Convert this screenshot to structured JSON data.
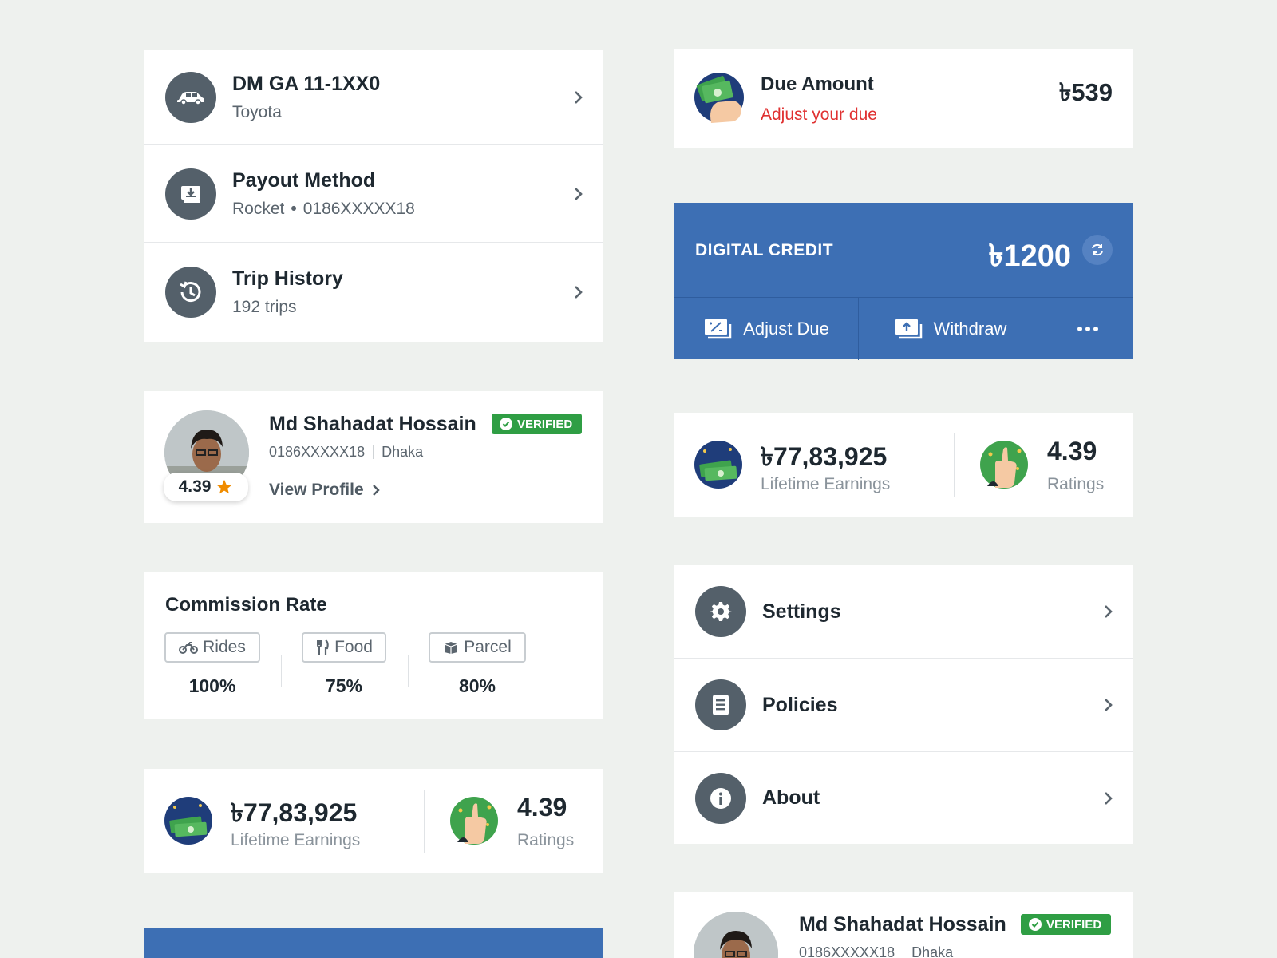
{
  "vehicle": {
    "title": "DM GA 11-1XX0",
    "subtitle": "Toyota"
  },
  "payout": {
    "title": "Payout Method",
    "provider": "Rocket",
    "number": "0186XXXXX18"
  },
  "trips": {
    "title": "Trip History",
    "subtitle": "192 trips"
  },
  "profile": {
    "name": "Md Shahadat Hossain",
    "phone": "0186XXXXX18",
    "city": "Dhaka",
    "badge": "VERIFIED",
    "rating": "4.39",
    "view_profile": "View Profile"
  },
  "commission": {
    "title": "Commission Rate",
    "items": [
      {
        "label": "Rides",
        "value": "100%",
        "icon": "motorbike-icon"
      },
      {
        "label": "Food",
        "value": "75%",
        "icon": "fork-knife-icon"
      },
      {
        "label": "Parcel",
        "value": "80%",
        "icon": "parcel-icon"
      }
    ]
  },
  "stats": {
    "earnings_value": "৳77,83,925",
    "earnings_label": "Lifetime Earnings",
    "ratings_value": "4.39",
    "ratings_label": "Ratings"
  },
  "due": {
    "title": "Due Amount",
    "subtitle": "Adjust your due",
    "amount": "৳539"
  },
  "digital_credit": {
    "label": "DIGITAL CREDIT",
    "amount": "৳1200",
    "adjust_label": "Adjust Due",
    "withdraw_label": "Withdraw"
  },
  "menu": [
    {
      "label": "Settings",
      "icon": "gear-icon"
    },
    {
      "label": "Policies",
      "icon": "document-icon"
    },
    {
      "label": "About",
      "icon": "info-icon"
    }
  ],
  "profile_bottom": {
    "name": "Md Shahadat Hossain",
    "phone": "0186XXXXX18",
    "city": "Dhaka",
    "badge": "VERIFIED"
  },
  "colors": {
    "background": "#eef1ee",
    "primary_blue": "#3d6fb4",
    "icon_circle": "#54606a",
    "verified_green": "#2f9e44",
    "due_red": "#e03131",
    "star_orange": "#f08c00"
  }
}
